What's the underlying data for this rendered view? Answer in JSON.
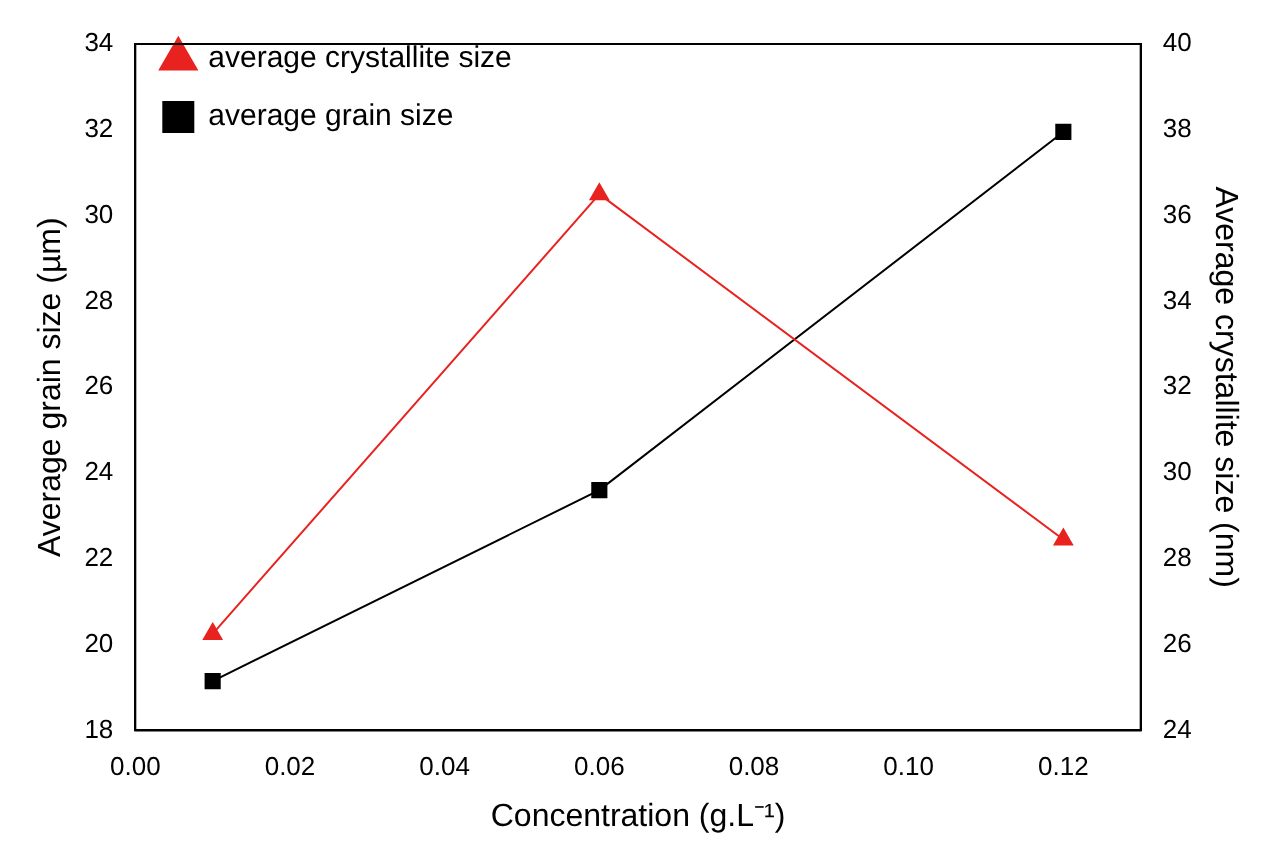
{
  "chart_data": {
    "type": "line",
    "xlabel": "Concentration (g.L⁻¹)",
    "ylabel": "Average grain size (µm)",
    "y2label": "Average crystallite size (nm)",
    "x": [
      0.01,
      0.06,
      0.12
    ],
    "series": [
      {
        "name": "average crystallite size",
        "color": "#e8231f",
        "values": [
          26.25,
          36.5,
          28.45
        ],
        "axis": "y2",
        "marker": "triangle"
      },
      {
        "name": "average grain size",
        "color": "#000000",
        "values": [
          19.15,
          23.6,
          31.95
        ],
        "marker": "square"
      }
    ],
    "xlim": [
      0,
      0.13
    ],
    "xticks": [
      {
        "value": 0,
        "label": "0.00"
      },
      {
        "value": 0.02,
        "label": "0.02"
      },
      {
        "value": 0.04,
        "label": "0.04"
      },
      {
        "value": 0.06,
        "label": "0.06"
      },
      {
        "value": 0.08,
        "label": "0.08"
      },
      {
        "value": 0.1,
        "label": "0.10"
      },
      {
        "value": 0.12,
        "label": "0.12"
      }
    ],
    "ylim": [
      18,
      34
    ],
    "yticks": [
      18,
      20,
      22,
      24,
      26,
      28,
      30,
      32,
      34
    ],
    "y2lim": [
      24,
      40
    ],
    "y2ticks": [
      24,
      26,
      28,
      30,
      32,
      34,
      36,
      38,
      40
    ],
    "grid": false,
    "legend": "top left"
  }
}
